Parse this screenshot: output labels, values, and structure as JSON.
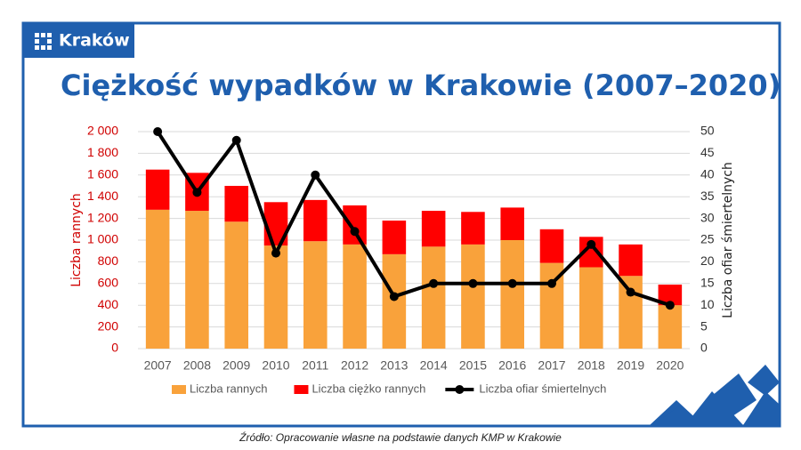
{
  "brand": "Kraków",
  "source": "Źródło: Opracowanie własne na podstawie danych KMP w Krakowie",
  "chart_data": {
    "type": "bar",
    "title": "Ciężkość wypadków w Krakowie (2007–2020)",
    "y_label": "Liczba rannych",
    "y2_label": "Liczba ofiar śmiertelnych",
    "categories": [
      "2007",
      "2008",
      "2009",
      "2010",
      "2011",
      "2012",
      "2013",
      "2014",
      "2015",
      "2016",
      "2017",
      "2018",
      "2019",
      "2020"
    ],
    "series": [
      {
        "name": "Liczba rannych",
        "type": "bar",
        "color": "#f9a23b",
        "values": [
          1280,
          1270,
          1170,
          950,
          990,
          960,
          870,
          940,
          960,
          1000,
          790,
          750,
          670,
          400
        ]
      },
      {
        "name": "Liczba ciężko rannych",
        "type": "bar",
        "color": "#ff0000",
        "values": [
          370,
          350,
          330,
          400,
          380,
          360,
          310,
          330,
          300,
          300,
          310,
          280,
          290,
          190
        ]
      },
      {
        "name": "Liczba ofiar śmiertelnych",
        "type": "line",
        "axis": "y2",
        "color": "#000000",
        "values": [
          50,
          36,
          48,
          22,
          40,
          27,
          12,
          15,
          15,
          15,
          15,
          24,
          13,
          10
        ]
      }
    ],
    "stacked": true,
    "ylim": [
      0,
      2000
    ],
    "yticks": [
      0,
      200,
      400,
      600,
      800,
      {
        "value": 1000,
        "label": "1 000"
      },
      {
        "value": 1200,
        "label": "1 200"
      },
      {
        "value": 1400,
        "label": "1 400"
      },
      {
        "value": 1600,
        "label": "1 600"
      },
      {
        "value": 1800,
        "label": "1 800"
      },
      {
        "value": 2000,
        "label": "2 000"
      }
    ],
    "y2lim": [
      0,
      50
    ],
    "y2ticks": [
      0,
      5,
      10,
      15,
      20,
      25,
      30,
      35,
      40,
      45,
      50
    ],
    "grid": true,
    "legend": "bottom"
  }
}
